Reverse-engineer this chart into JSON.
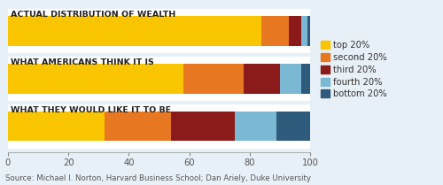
{
  "categories": [
    "WHAT THEY WOULD LIKE IT TO BE",
    "WHAT AMERICANS THINK IT IS",
    "ACTUAL DISTRIBUTION OF WEALTH"
  ],
  "series": {
    "top 20%": [
      32,
      58,
      84
    ],
    "second 20%": [
      22,
      20,
      9
    ],
    "third 20%": [
      21,
      12,
      4
    ],
    "fourth 20%": [
      14,
      7,
      2
    ],
    "bottom 20%": [
      11,
      3,
      1
    ]
  },
  "colors": {
    "top 20%": "#F9C400",
    "second 20%": "#E87722",
    "third 20%": "#8B1A1A",
    "fourth 20%": "#7BB8D4",
    "bottom 20%": "#2E5B7B"
  },
  "legend_order": [
    "top 20%",
    "second 20%",
    "third 20%",
    "fourth 20%",
    "bottom 20%"
  ],
  "source": "Source: Michael I. Norton, Harvard Business School; Dan Ariely, Duke University",
  "xlim": [
    0,
    100
  ],
  "xticks": [
    0,
    20,
    40,
    60,
    80,
    100
  ],
  "bg_color": "#E8F0F7",
  "bar_bg": "#FFFFFF",
  "bar_height": 0.62,
  "title_fontsize": 6.8,
  "legend_fontsize": 7.2,
  "source_fontsize": 6.2,
  "tick_fontsize": 7.2
}
